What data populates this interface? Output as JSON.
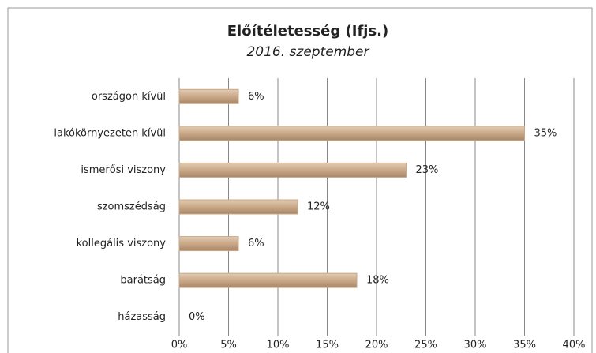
{
  "chart_data": {
    "type": "bar",
    "orientation": "horizontal",
    "title": "Előítéletesség (Ifjs.)",
    "subtitle": "2016. szeptember",
    "categories": [
      "országon kívül",
      "lakókörnyezeten kívül",
      "ismerősi viszony",
      "szomszédság",
      "kollegális viszony",
      "barátság",
      "házasság"
    ],
    "values": [
      6,
      35,
      23,
      12,
      6,
      18,
      0
    ],
    "value_labels": [
      "6%",
      "35%",
      "23%",
      "12%",
      "6%",
      "18%",
      "0%"
    ],
    "color": "#c8a887",
    "xlim": [
      0,
      40
    ],
    "xticks": [
      {
        "value": 0,
        "label": "0%"
      },
      {
        "value": 5,
        "label": "5%"
      },
      {
        "value": 10,
        "label": "10%"
      },
      {
        "value": 15,
        "label": "15%"
      },
      {
        "value": 20,
        "label": "20%"
      },
      {
        "value": 25,
        "label": "25%"
      },
      {
        "value": 30,
        "label": "30%"
      },
      {
        "value": 35,
        "label": "35%"
      },
      {
        "value": 40,
        "label": "40%"
      }
    ],
    "grid": true
  }
}
